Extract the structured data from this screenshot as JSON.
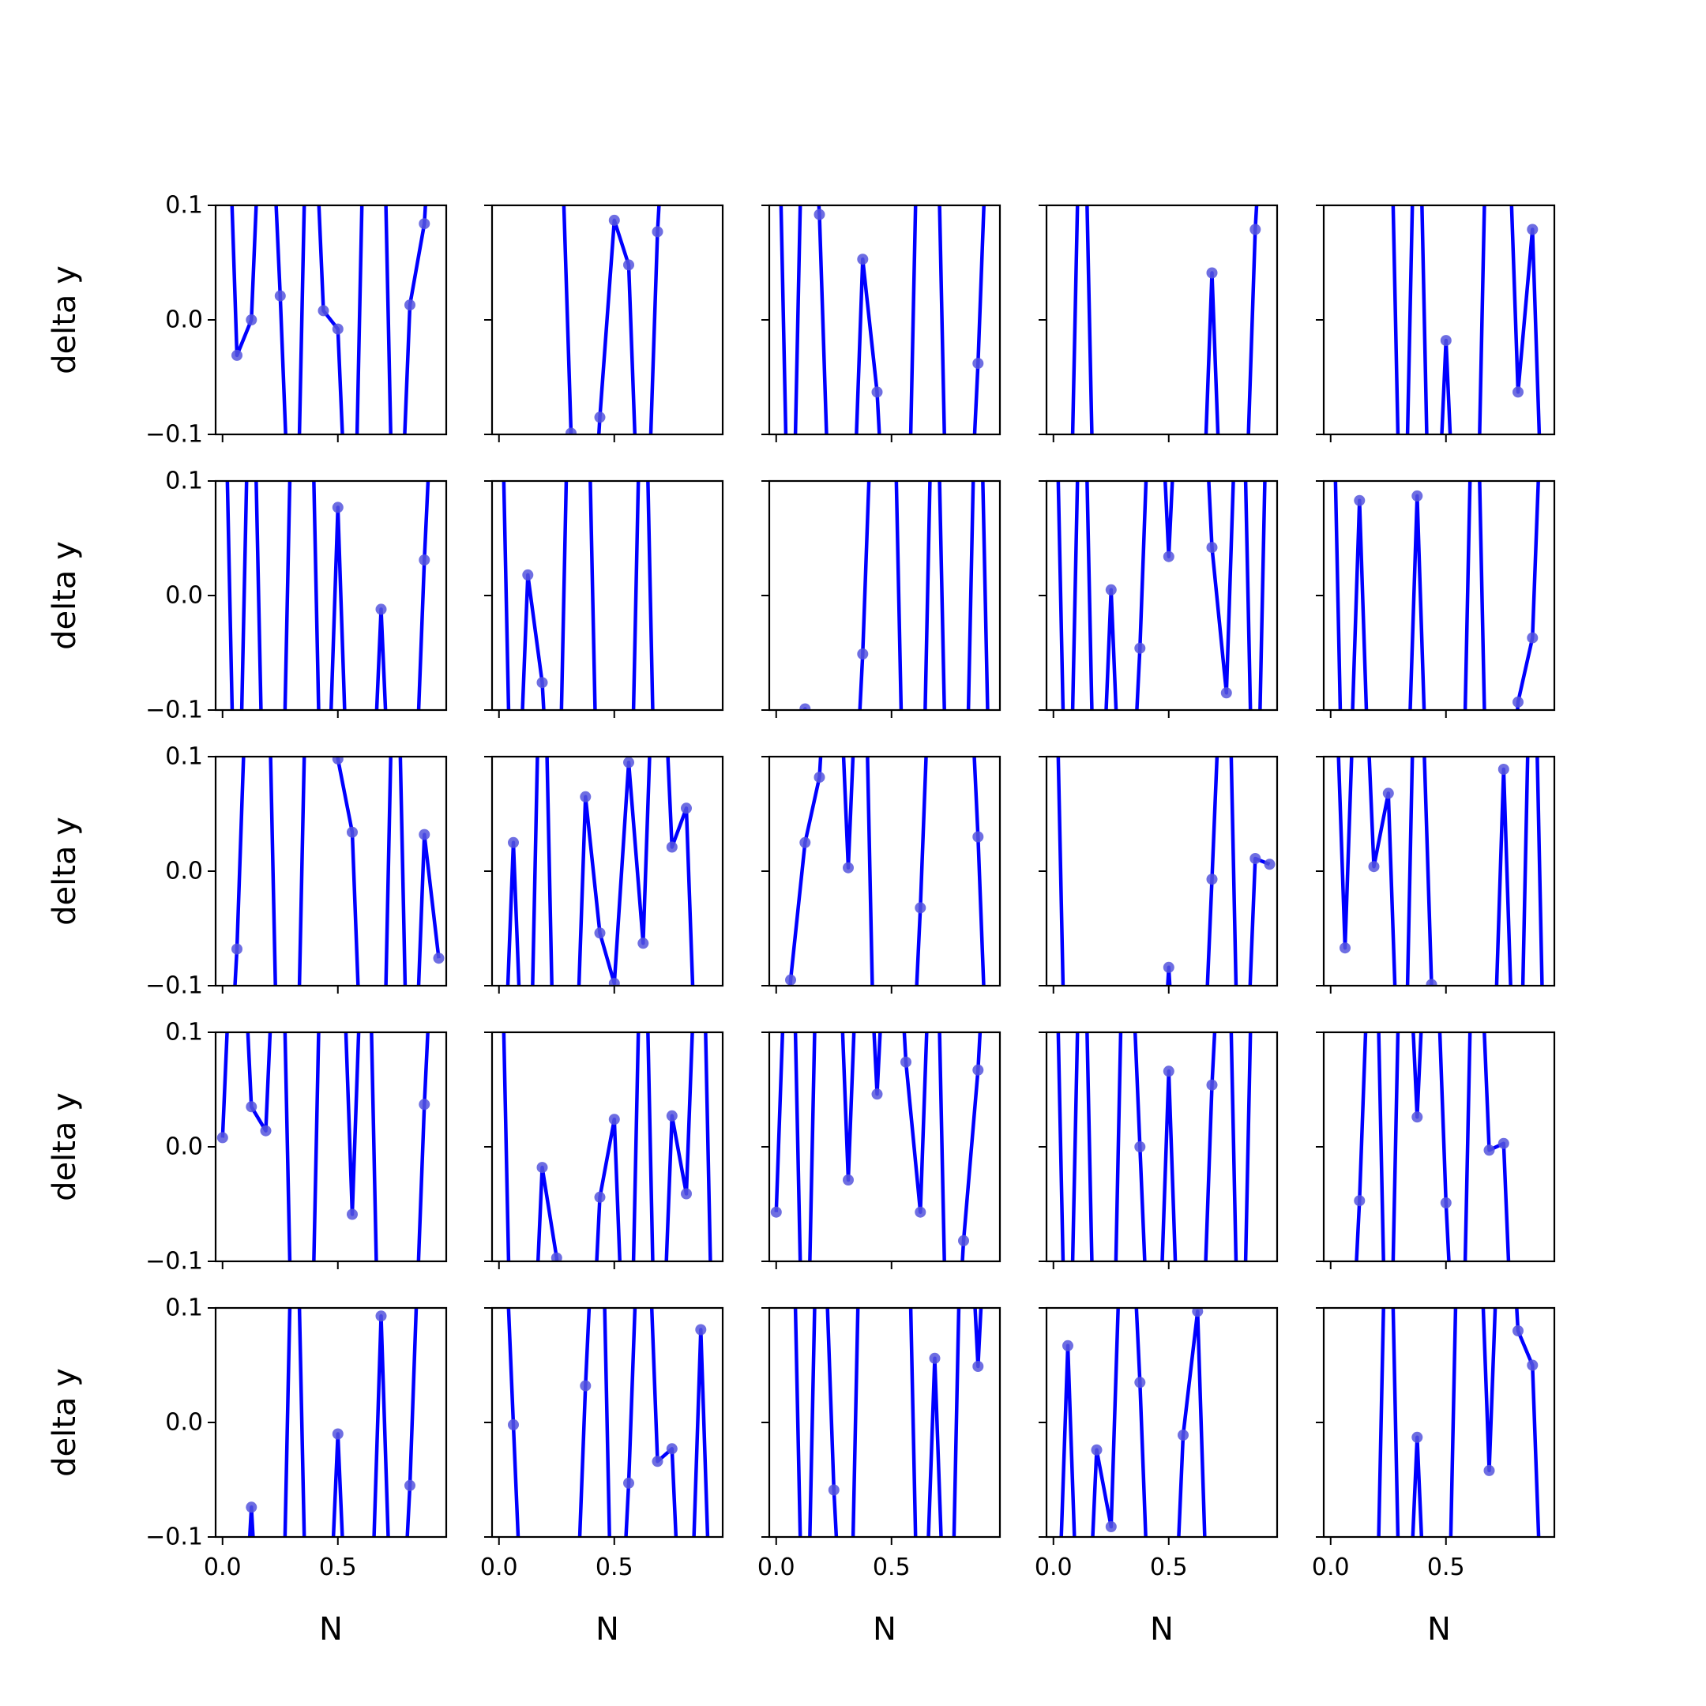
{
  "chart_data": {
    "type": "line",
    "layout": "5x5 grid of subplots, shared x and y axes",
    "xlabel": "N",
    "ylabel": "delta y",
    "ylim": [
      -0.1,
      0.1
    ],
    "xlim": [
      -0.03,
      0.97
    ],
    "yticks": [
      -0.1,
      0.0,
      0.1
    ],
    "ytick_labels": [
      "−0.1",
      "0.0",
      "0.1"
    ],
    "xticks": [
      0.0,
      0.5
    ],
    "xtick_labels": [
      "0.0",
      "0.5"
    ],
    "grid": false,
    "line_color": "#0000ff",
    "marker_color": "#5555dd",
    "x": [
      0.0,
      0.0625,
      0.125,
      0.1875,
      0.25,
      0.3125,
      0.375,
      0.4375,
      0.5,
      0.5625,
      0.625,
      0.6875,
      0.75,
      0.8125,
      0.875,
      0.9375
    ],
    "panels": [
      [
        0.35,
        -0.031,
        0.0,
        0.3,
        0.021,
        -0.3,
        0.3,
        0.008,
        -0.008,
        -0.3,
        0.3,
        0.3,
        -0.3,
        0.013,
        0.084,
        0.3
      ],
      [
        0.3,
        0.3,
        0.3,
        0.3,
        0.3,
        -0.099,
        -0.3,
        -0.085,
        0.087,
        0.048,
        -0.3,
        0.077,
        0.3,
        0.3,
        0.3,
        0.3
      ],
      [
        0.3,
        -0.3,
        0.3,
        0.092,
        -0.3,
        -0.3,
        0.053,
        -0.063,
        -0.3,
        -0.3,
        0.3,
        0.3,
        -0.3,
        -0.3,
        -0.038,
        0.3
      ],
      [
        -0.3,
        -0.3,
        0.3,
        -0.3,
        -0.3,
        -0.3,
        -0.3,
        -0.3,
        -0.3,
        -0.3,
        -0.3,
        0.041,
        -0.3,
        -0.3,
        0.079,
        0.3
      ],
      [
        0.3,
        0.3,
        0.3,
        0.3,
        0.3,
        -0.3,
        0.3,
        -0.3,
        -0.018,
        -0.3,
        -0.3,
        0.3,
        0.3,
        -0.063,
        0.079,
        -0.3
      ],
      [
        0.3,
        -0.3,
        0.3,
        -0.3,
        -0.3,
        0.3,
        0.3,
        -0.3,
        0.077,
        -0.3,
        -0.3,
        -0.012,
        -0.3,
        -0.3,
        0.031,
        0.3
      ],
      [
        0.3,
        -0.3,
        0.018,
        -0.076,
        -0.3,
        0.3,
        0.3,
        -0.3,
        -0.3,
        -0.3,
        0.3,
        -0.3,
        -0.3,
        -0.3,
        -0.3,
        -0.3
      ],
      [
        -0.3,
        -0.3,
        -0.099,
        -0.3,
        -0.3,
        -0.3,
        -0.051,
        0.3,
        0.3,
        -0.3,
        -0.3,
        0.3,
        -0.3,
        -0.3,
        0.3,
        -0.3
      ],
      [
        0.3,
        -0.3,
        0.3,
        -0.3,
        0.005,
        -0.3,
        -0.046,
        0.3,
        0.034,
        0.3,
        0.3,
        0.042,
        -0.085,
        0.3,
        -0.3,
        0.3
      ],
      [
        0.3,
        -0.3,
        0.083,
        -0.3,
        -0.3,
        -0.3,
        0.087,
        -0.3,
        -0.3,
        -0.3,
        0.3,
        -0.3,
        -0.3,
        -0.093,
        -0.037,
        0.3
      ],
      [
        -0.3,
        -0.068,
        0.3,
        0.3,
        -0.3,
        -0.3,
        0.3,
        0.3,
        0.098,
        0.034,
        -0.3,
        -0.3,
        0.3,
        -0.3,
        0.032,
        -0.076
      ],
      [
        -0.3,
        0.025,
        -0.3,
        0.3,
        -0.3,
        -0.3,
        0.065,
        -0.054,
        -0.098,
        0.095,
        -0.063,
        0.3,
        0.021,
        0.055,
        -0.3,
        -0.3
      ],
      [
        -0.3,
        -0.095,
        0.025,
        0.082,
        0.3,
        0.003,
        0.3,
        -0.3,
        -0.3,
        -0.3,
        -0.032,
        0.3,
        0.3,
        0.3,
        0.03,
        -0.3
      ],
      [
        0.3,
        -0.3,
        -0.3,
        -0.3,
        -0.3,
        -0.3,
        -0.3,
        -0.3,
        -0.084,
        -0.3,
        -0.3,
        -0.007,
        0.3,
        -0.3,
        0.011,
        0.006
      ],
      [
        0.3,
        -0.067,
        0.3,
        0.004,
        0.068,
        -0.3,
        0.3,
        -0.099,
        -0.3,
        -0.3,
        -0.3,
        -0.3,
        0.089,
        -0.3,
        0.3,
        -0.3
      ],
      [
        0.008,
        0.3,
        0.035,
        0.014,
        0.3,
        -0.3,
        -0.3,
        0.3,
        0.3,
        -0.059,
        0.3,
        -0.3,
        -0.3,
        -0.3,
        0.037,
        0.3
      ],
      [
        0.3,
        -0.3,
        -0.3,
        -0.018,
        -0.097,
        -0.3,
        -0.3,
        -0.044,
        0.024,
        -0.3,
        0.3,
        -0.3,
        0.027,
        -0.041,
        0.3,
        -0.3
      ],
      [
        -0.057,
        0.3,
        -0.3,
        0.3,
        0.3,
        -0.029,
        0.3,
        0.046,
        0.3,
        0.074,
        -0.057,
        0.3,
        -0.3,
        -0.082,
        0.067,
        0.3
      ],
      [
        0.3,
        -0.3,
        0.3,
        -0.3,
        -0.3,
        0.3,
        0.0,
        -0.3,
        0.066,
        -0.3,
        -0.3,
        0.054,
        0.3,
        -0.3,
        0.3,
        0.3
      ],
      [
        -0.3,
        -0.3,
        -0.047,
        0.3,
        -0.3,
        0.3,
        0.026,
        0.3,
        -0.049,
        -0.3,
        0.3,
        -0.003,
        0.003,
        -0.3,
        -0.3,
        -0.3
      ],
      [
        -0.3,
        -0.3,
        -0.074,
        -0.3,
        -0.3,
        0.3,
        -0.3,
        -0.3,
        -0.01,
        -0.3,
        -0.3,
        0.093,
        -0.3,
        -0.055,
        0.3,
        0.3
      ],
      [
        0.3,
        -0.002,
        -0.3,
        -0.3,
        -0.3,
        -0.3,
        0.032,
        0.3,
        -0.3,
        -0.053,
        0.3,
        -0.034,
        -0.023,
        -0.3,
        0.081,
        -0.3
      ],
      [
        0.3,
        0.3,
        -0.3,
        0.3,
        -0.059,
        -0.3,
        0.3,
        0.3,
        0.3,
        0.3,
        -0.3,
        0.056,
        -0.3,
        0.3,
        0.049,
        0.3
      ],
      [
        -0.3,
        0.067,
        -0.3,
        -0.024,
        -0.091,
        0.3,
        0.035,
        -0.3,
        -0.3,
        -0.011,
        0.097,
        -0.3,
        -0.3,
        -0.3,
        -0.3,
        -0.3
      ],
      [
        -0.3,
        -0.3,
        -0.3,
        -0.3,
        0.3,
        -0.3,
        -0.013,
        -0.3,
        -0.3,
        0.3,
        0.3,
        -0.042,
        0.3,
        0.08,
        0.05,
        -0.3
      ]
    ]
  }
}
